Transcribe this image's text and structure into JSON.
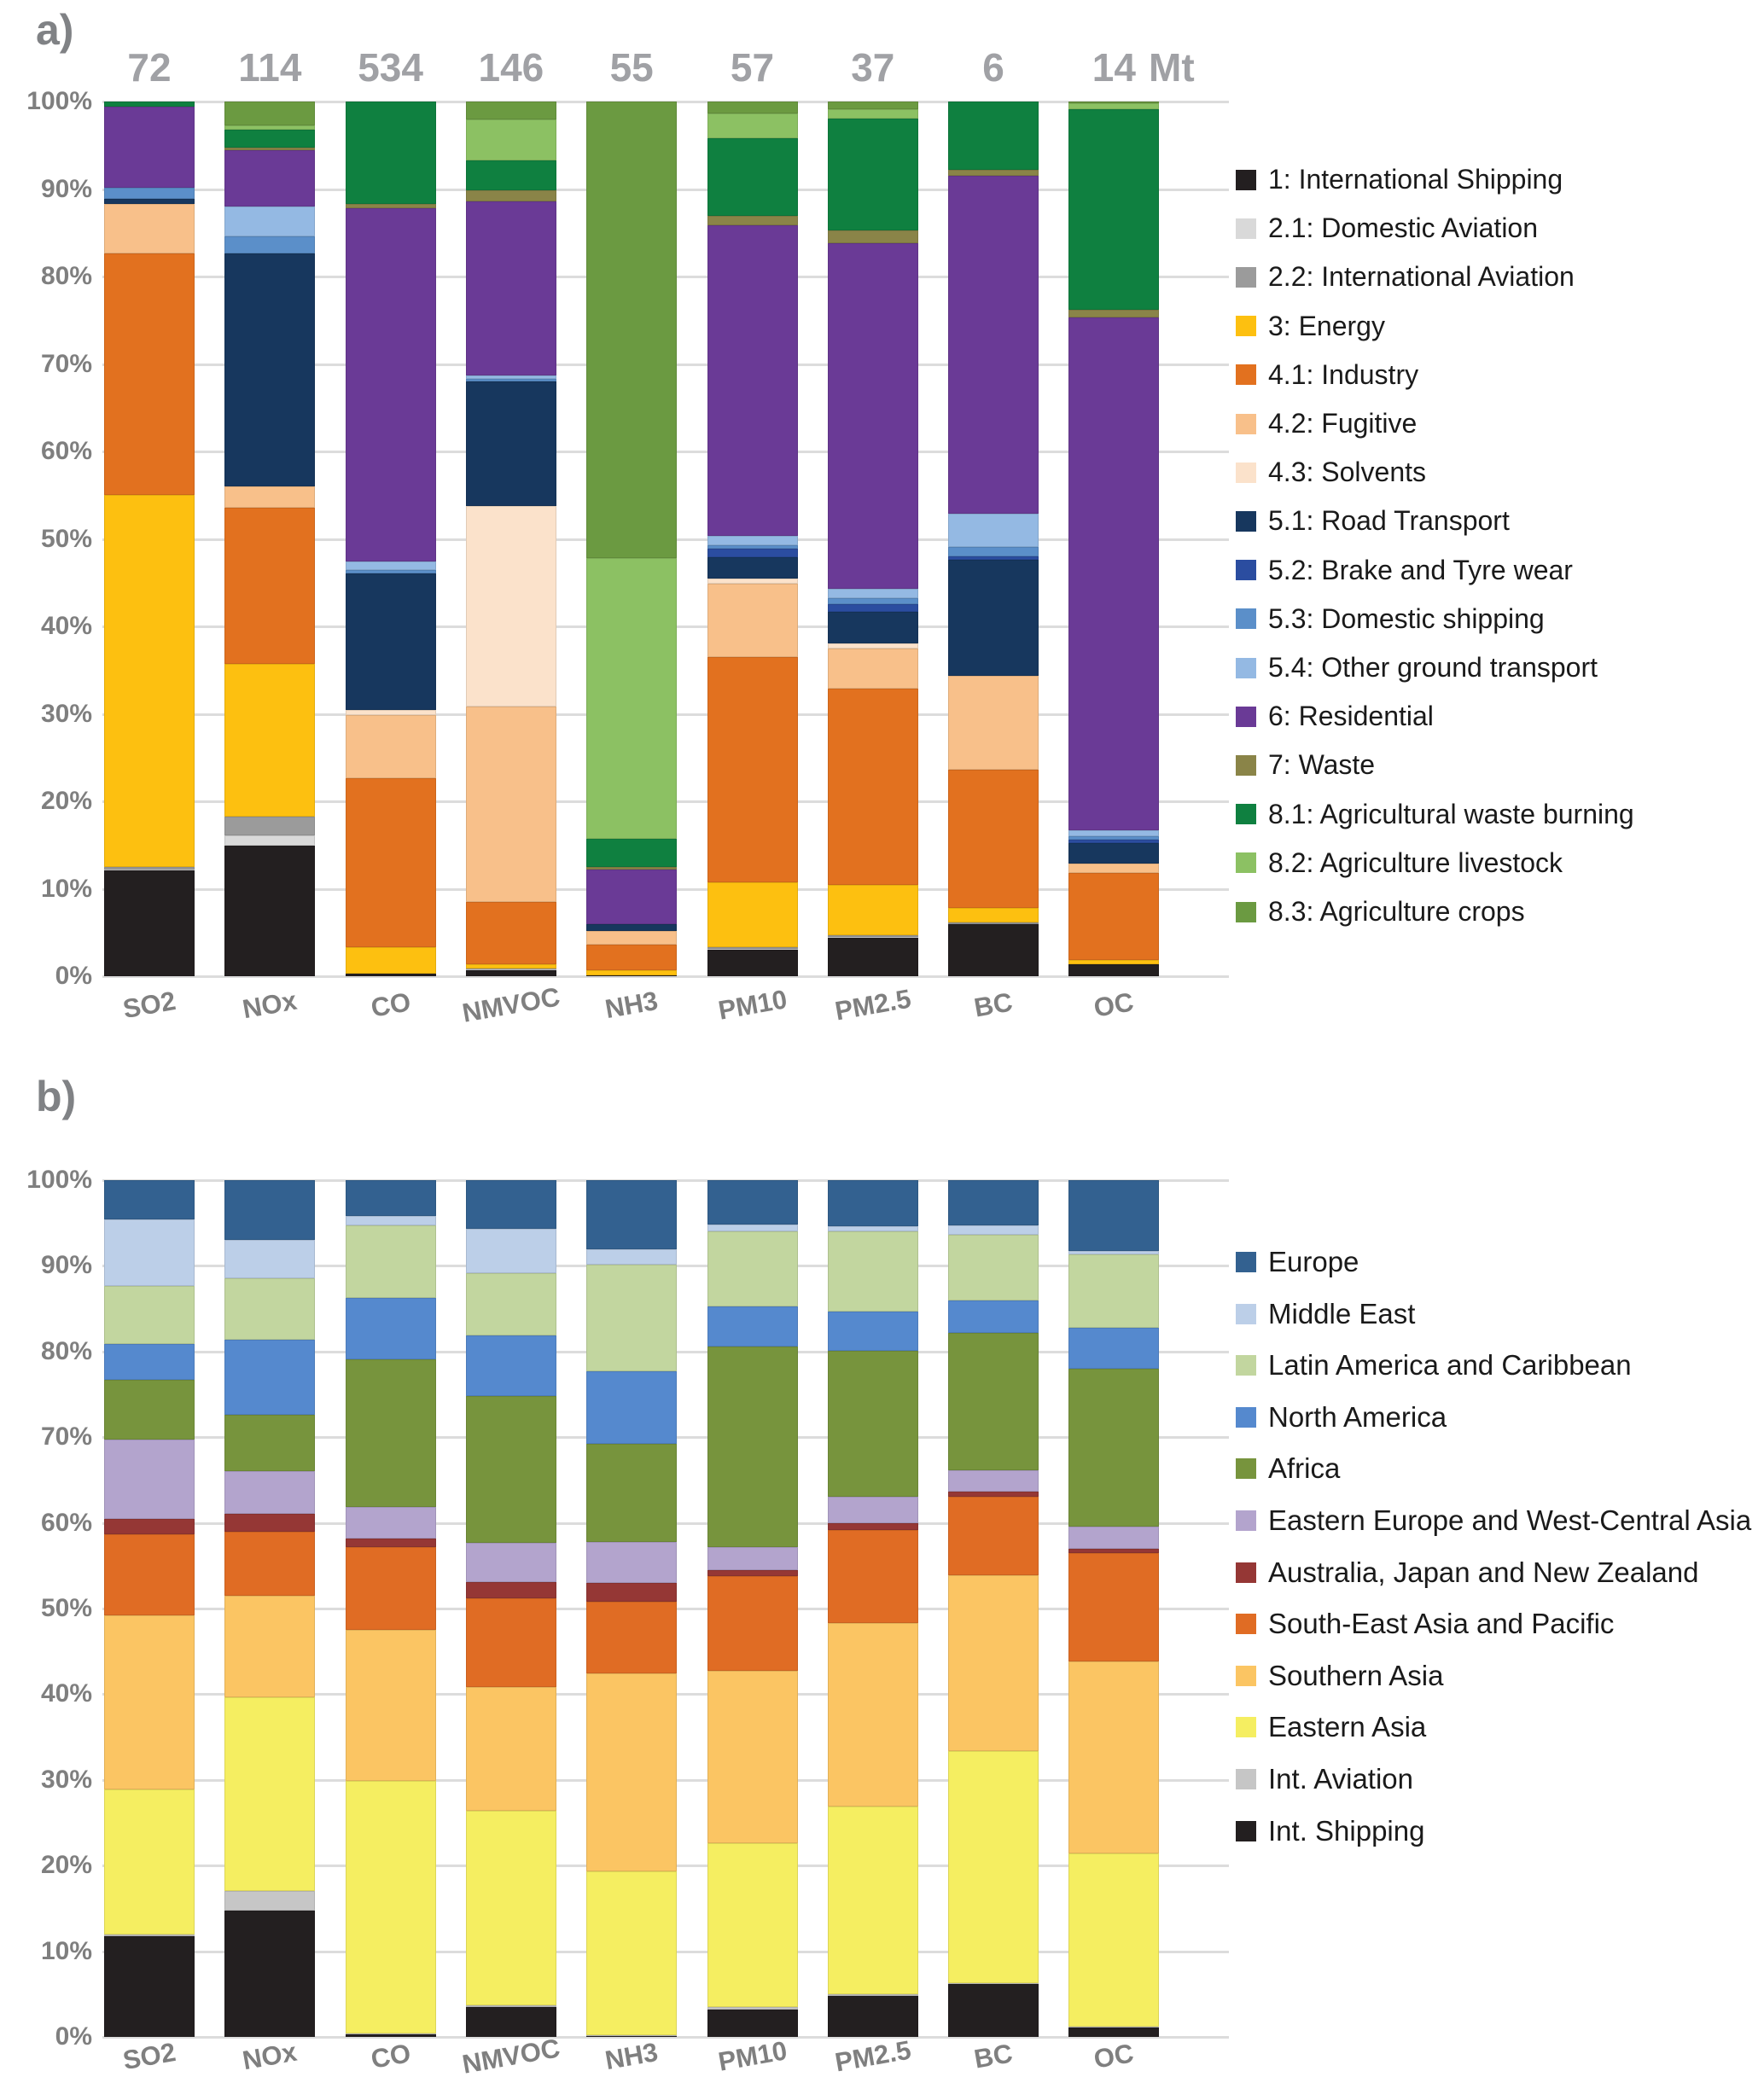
{
  "chart_data": [
    {
      "id": "a",
      "type": "bar",
      "stacked": true,
      "title": "a)",
      "unit": "Mt",
      "totals": [
        "72",
        "114",
        "534",
        "146",
        "55",
        "57",
        "37",
        "6",
        "14"
      ],
      "categories": [
        "SO2",
        "NOx",
        "CO",
        "NMVOC",
        "NH3",
        "PM10",
        "PM2.5",
        "BC",
        "OC"
      ],
      "ylabel": "",
      "xlabel": "",
      "ylim": [
        0,
        100
      ],
      "grid": true,
      "y_ticks": [
        "0%",
        "10%",
        "20%",
        "30%",
        "40%",
        "50%",
        "60%",
        "70%",
        "80%",
        "90%",
        "100%"
      ],
      "series": [
        {
          "name": "1: International Shipping",
          "color": "#231f20",
          "values": [
            12.1,
            14.9,
            0.3,
            0.7,
            0.1,
            3.0,
            4.4,
            6.0,
            1.4
          ]
        },
        {
          "name": "2.1: Domestic Aviation",
          "color": "#d9d9d9",
          "values": [
            0.1,
            1.2,
            0,
            0.1,
            0,
            0.1,
            0.1,
            0,
            0
          ]
        },
        {
          "name": "2.2: International Aviation",
          "color": "#9b9b9b",
          "values": [
            0.3,
            2.1,
            0,
            0.1,
            0,
            0.2,
            0.2,
            0.1,
            0
          ]
        },
        {
          "name": "3: Energy",
          "color": "#fdc010",
          "values": [
            42.5,
            17.5,
            3.0,
            0.5,
            0.6,
            7.4,
            5.7,
            1.7,
            0.5
          ]
        },
        {
          "name": "4.1: Industry",
          "color": "#e2711f",
          "values": [
            27.6,
            17.9,
            19.3,
            7.1,
            2.9,
            25.8,
            22.5,
            15.8,
            9.9
          ]
        },
        {
          "name": "4.2: Fugitive",
          "color": "#f8c08a",
          "values": [
            5.7,
            2.4,
            7.3,
            22.3,
            1.6,
            8.4,
            4.6,
            10.7,
            1.1
          ]
        },
        {
          "name": "4.3:  Solvents",
          "color": "#fbe2cb",
          "values": [
            0,
            0,
            0.5,
            23.0,
            0,
            0.6,
            0.6,
            0,
            0
          ]
        },
        {
          "name": "5.1: Road Transport",
          "color": "#17375e",
          "values": [
            0.6,
            26.6,
            15.7,
            14.2,
            0.8,
            2.4,
            3.6,
            13.3,
            2.3
          ]
        },
        {
          "name": "5.2: Brake and Tyre wear",
          "color": "#2b4da0",
          "values": [
            0,
            0,
            0,
            0,
            0,
            1.0,
            0.8,
            0.4,
            0.4
          ]
        },
        {
          "name": "5.3: Domestic shipping",
          "color": "#5b8fc9",
          "values": [
            1.3,
            2.0,
            0.3,
            0.3,
            0,
            0.4,
            0.7,
            1.1,
            0.4
          ]
        },
        {
          "name": "5.4: Other ground transport",
          "color": "#94b9e3",
          "values": [
            0,
            3.4,
            1.0,
            0.4,
            0,
            1.0,
            1.1,
            3.8,
            0.7
          ]
        },
        {
          "name": "6: Residential",
          "color": "#6a3a96",
          "values": [
            9.2,
            6.4,
            40.4,
            19.9,
            6.2,
            35.6,
            39.5,
            38.6,
            58.6
          ]
        },
        {
          "name": "7: Waste",
          "color": "#8a8448",
          "values": [
            0,
            0.3,
            0.5,
            1.3,
            0.3,
            1.0,
            1.5,
            0.7,
            0.9
          ]
        },
        {
          "name": "8.1: Agricultural waste burning",
          "color": "#0f8040",
          "values": [
            0.6,
            2.1,
            11.7,
            3.4,
            3.2,
            8.9,
            12.8,
            7.8,
            22.9
          ]
        },
        {
          "name": "8.2: Agriculture livestock",
          "color": "#8cc163",
          "values": [
            0,
            0.5,
            0,
            4.7,
            32.1,
            2.8,
            1.0,
            0,
            0.7
          ]
        },
        {
          "name": "8.3: Agriculture crops",
          "color": "#6b9a41",
          "values": [
            0,
            2.7,
            0,
            2.0,
            52.2,
            1.4,
            0.9,
            0,
            0.2
          ]
        }
      ],
      "legend_order": [
        "1: International Shipping",
        "2.1: Domestic Aviation",
        "2.2: International Aviation",
        "3: Energy",
        "4.1: Industry",
        "4.2: Fugitive",
        "4.3:  Solvents",
        "5.1: Road Transport",
        "5.2: Brake and Tyre wear",
        "5.3: Domestic shipping",
        "5.4: Other ground transport",
        "6: Residential",
        "7: Waste",
        "8.1: Agricultural waste burning",
        "8.2: Agriculture livestock",
        "8.3: Agriculture crops"
      ],
      "legend_position": "right"
    },
    {
      "id": "b",
      "type": "bar",
      "stacked": true,
      "title": "b)",
      "unit": "",
      "totals": [],
      "categories": [
        "SO2",
        "NOx",
        "CO",
        "NMVOC",
        "NH3",
        "PM10",
        "PM2.5",
        "BC",
        "OC"
      ],
      "ylabel": "",
      "xlabel": "",
      "ylim": [
        0,
        100
      ],
      "grid": true,
      "y_ticks": [
        "0%",
        "10%",
        "20%",
        "30%",
        "40%",
        "50%",
        "60%",
        "70%",
        "80%",
        "90%",
        "100%"
      ],
      "series": [
        {
          "name": "Int. Shipping",
          "color": "#231f20",
          "values": [
            11.8,
            14.7,
            0.3,
            3.5,
            0.1,
            3.2,
            4.8,
            6.2,
            1.1
          ]
        },
        {
          "name": "Int. Aviation",
          "color": "#c6c6c6",
          "values": [
            0.2,
            2.3,
            0.1,
            0.2,
            0.1,
            0.3,
            0.2,
            0.1,
            0.1
          ]
        },
        {
          "name": "Eastern Asia",
          "color": "#f5ee61",
          "values": [
            16.9,
            22.6,
            29.5,
            22.7,
            19.1,
            19.1,
            21.9,
            27.1,
            20.2
          ]
        },
        {
          "name": "Southern Asia",
          "color": "#fbc563",
          "values": [
            20.3,
            11.9,
            17.6,
            14.4,
            23.1,
            20.1,
            21.4,
            20.5,
            22.4
          ]
        },
        {
          "name": "South-East Asia and Pacific",
          "color": "#e06c24",
          "values": [
            9.5,
            7.5,
            9.7,
            10.4,
            8.4,
            11.1,
            10.9,
            9.2,
            12.7
          ]
        },
        {
          "name": "Australia, Japan and New Zealand",
          "color": "#953735",
          "values": [
            1.8,
            2.1,
            1.0,
            1.9,
            2.2,
            0.7,
            0.8,
            0.6,
            0.5
          ]
        },
        {
          "name": "Eastern Europe and West-Central Asia",
          "color": "#b3a4cd",
          "values": [
            9.2,
            4.9,
            3.7,
            4.6,
            4.8,
            2.7,
            3.1,
            2.4,
            2.6
          ]
        },
        {
          "name": "Africa",
          "color": "#77943d",
          "values": [
            7.0,
            6.6,
            17.2,
            17.1,
            11.4,
            23.4,
            17.0,
            16.1,
            18.4
          ]
        },
        {
          "name": "North America",
          "color": "#5589ce",
          "values": [
            4.2,
            8.8,
            7.2,
            7.1,
            8.5,
            4.7,
            4.6,
            3.8,
            4.8
          ]
        },
        {
          "name": "Latin America and Caribbean",
          "color": "#c2d69f",
          "values": [
            6.8,
            7.2,
            8.4,
            7.3,
            12.4,
            8.7,
            9.3,
            7.6,
            8.5
          ]
        },
        {
          "name": "Middle East",
          "color": "#bccfe8",
          "values": [
            7.7,
            4.4,
            1.1,
            5.1,
            1.8,
            0.8,
            0.6,
            1.1,
            0.4
          ]
        },
        {
          "name": "Europe",
          "color": "#336190",
          "values": [
            4.6,
            7.0,
            4.2,
            5.7,
            8.1,
            5.2,
            5.4,
            5.3,
            8.3
          ]
        }
      ],
      "legend_order": [
        "Europe",
        "Middle East",
        "Latin America and Caribbean",
        "North America",
        "Africa",
        "Eastern Europe and West-Central Asia",
        "Australia, Japan and New Zealand",
        "South-East Asia and Pacific",
        "Southern Asia",
        "Eastern Asia",
        "Int. Aviation",
        "Int. Shipping"
      ],
      "legend_position": "right"
    }
  ]
}
